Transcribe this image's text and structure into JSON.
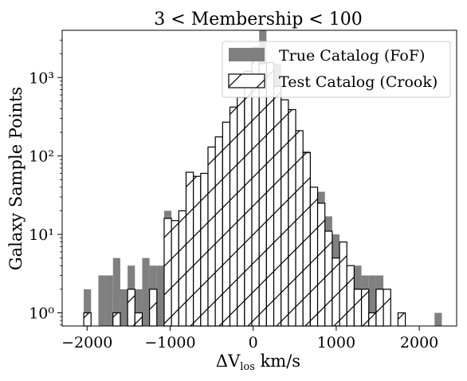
{
  "chart_data": {
    "type": "bar",
    "title": "3 < Membership < 100",
    "xlabel_main": "ΔV",
    "xlabel_sub": "los",
    "xlabel_unit": " km/s",
    "ylabel": "Galaxy Sample Points",
    "xlim": [
      -2300,
      2450
    ],
    "ylim": [
      0.68,
      4000
    ],
    "yscale": "log",
    "bin_width": 88,
    "x_ticks": [
      -2000,
      -1000,
      0,
      1000,
      2000
    ],
    "x_tick_labels": [
      "−2000",
      "−1000",
      "0",
      "1000",
      "2000"
    ],
    "y_ticks": [
      1,
      10,
      100,
      1000
    ],
    "y_tick_labels": [
      "10⁰",
      "10¹",
      "10²",
      "10³"
    ],
    "legend_position": "upper right",
    "colors": {
      "true": "#808080",
      "test_edge": "#000000",
      "test_fill": "#ffffff"
    },
    "series": [
      {
        "name": "True Catalog (FoF)",
        "style": "filled",
        "bins": [
          [
            -2040,
            2
          ],
          [
            -1864,
            3
          ],
          [
            -1776,
            3
          ],
          [
            -1688,
            5
          ],
          [
            -1600,
            2
          ],
          [
            -1512,
            4
          ],
          [
            -1424,
            2
          ],
          [
            -1336,
            5
          ],
          [
            -1248,
            4
          ],
          [
            -1160,
            4
          ],
          [
            -1072,
            20
          ],
          [
            -984,
            15
          ],
          [
            -896,
            18
          ],
          [
            -808,
            55
          ],
          [
            -720,
            30
          ],
          [
            -632,
            40
          ],
          [
            -544,
            120
          ],
          [
            -456,
            140
          ],
          [
            -368,
            270
          ],
          [
            -280,
            420
          ],
          [
            -192,
            550
          ],
          [
            -104,
            1200
          ],
          [
            -16,
            2500
          ],
          [
            72,
            4500
          ],
          [
            160,
            1500
          ],
          [
            248,
            1500
          ],
          [
            336,
            480
          ],
          [
            424,
            380
          ],
          [
            512,
            170
          ],
          [
            600,
            115
          ],
          [
            688,
            38
          ],
          [
            776,
            35
          ],
          [
            864,
            17
          ],
          [
            952,
            10
          ],
          [
            1040,
            6
          ],
          [
            1128,
            3
          ],
          [
            1216,
            4
          ],
          [
            1304,
            3
          ],
          [
            1392,
            3
          ],
          [
            1480,
            3
          ],
          [
            1568,
            2
          ],
          [
            2184,
            1
          ]
        ]
      },
      {
        "name": "Test Catalog (Crook)",
        "style": "hatched",
        "bins": [
          [
            -2040,
            1
          ],
          [
            -1688,
            1
          ],
          [
            -1512,
            2
          ],
          [
            -1424,
            1
          ],
          [
            -1248,
            2
          ],
          [
            -1072,
            16
          ],
          [
            -984,
            15
          ],
          [
            -896,
            20
          ],
          [
            -808,
            62
          ],
          [
            -720,
            55
          ],
          [
            -632,
            60
          ],
          [
            -544,
            130
          ],
          [
            -456,
            175
          ],
          [
            -368,
            270
          ],
          [
            -280,
            420
          ],
          [
            -192,
            560
          ],
          [
            -104,
            1200
          ],
          [
            -16,
            1650
          ],
          [
            72,
            1500
          ],
          [
            160,
            1550
          ],
          [
            248,
            770
          ],
          [
            336,
            520
          ],
          [
            424,
            390
          ],
          [
            512,
            210
          ],
          [
            600,
            110
          ],
          [
            688,
            40
          ],
          [
            776,
            25
          ],
          [
            864,
            11
          ],
          [
            952,
            5
          ],
          [
            1040,
            8
          ],
          [
            1128,
            4
          ],
          [
            1216,
            2
          ],
          [
            1304,
            2
          ],
          [
            1392,
            1
          ],
          [
            1480,
            2
          ],
          [
            1568,
            2
          ],
          [
            1744,
            1
          ]
        ]
      }
    ]
  }
}
